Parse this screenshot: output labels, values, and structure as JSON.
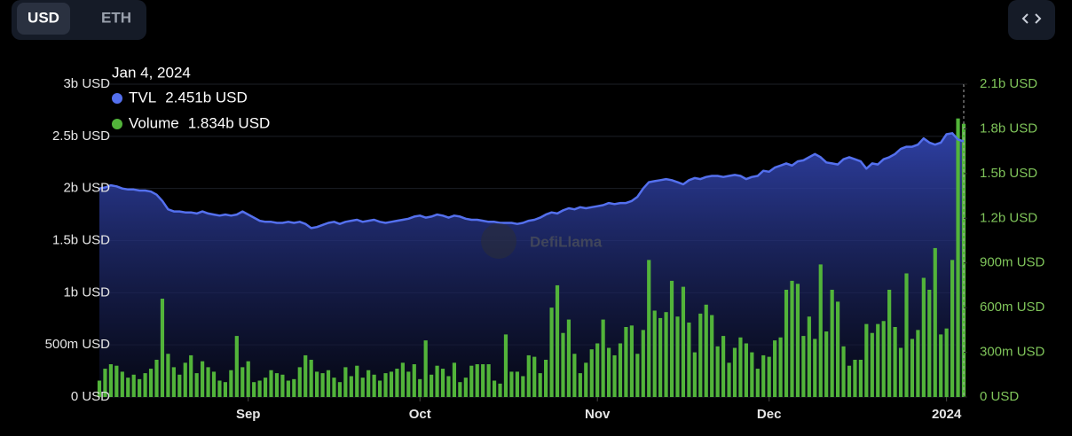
{
  "chart_data": {
    "type": "area-bar",
    "toggle": [
      "USD",
      "ETH"
    ],
    "watermark": "DefiLlama",
    "xlim": [
      0,
      151
    ],
    "xticks": [
      {
        "value": 26,
        "label": "Sep"
      },
      {
        "value": 56,
        "label": "Oct"
      },
      {
        "value": 87,
        "label": "Nov"
      },
      {
        "value": 117,
        "label": "Dec"
      },
      {
        "value": 148,
        "label": "2024"
      }
    ],
    "ylim": [
      0,
      3000000000.0
    ],
    "yticks": [
      {
        "value": 0,
        "label": "0 USD"
      },
      {
        "value": 500000000.0,
        "label": "500m USD"
      },
      {
        "value": 1000000000.0,
        "label": "1b USD"
      },
      {
        "value": 1500000000.0,
        "label": "1.5b USD"
      },
      {
        "value": 2000000000.0,
        "label": "2b USD"
      },
      {
        "value": 2500000000.0,
        "label": "2.5b USD"
      },
      {
        "value": 3000000000.0,
        "label": "3b USD"
      }
    ],
    "y2lim": [
      0,
      2100000000.0
    ],
    "y2ticks": [
      {
        "value": 0,
        "label": "0 USD"
      },
      {
        "value": 300000000.0,
        "label": "300m USD"
      },
      {
        "value": 600000000.0,
        "label": "600m USD"
      },
      {
        "value": 900000000.0,
        "label": "900m USD"
      },
      {
        "value": 1200000000.0,
        "label": "1.2b USD"
      },
      {
        "value": 1500000000.0,
        "label": "1.5b USD"
      },
      {
        "value": 1800000000.0,
        "label": "1.8b USD"
      },
      {
        "value": 2100000000.0,
        "label": "2.1b USD"
      }
    ],
    "grid": true,
    "tooltip": {
      "title": "Jan 4, 2024",
      "index": 151,
      "value_labels": [
        "2.451b USD",
        "1.834b USD"
      ]
    },
    "series": [
      {
        "name": "TVL",
        "kind": "area",
        "color": "#5470ee",
        "values": [
          2000000000.0,
          2010000000.0,
          2030000000.0,
          2020000000.0,
          2000000000.0,
          1990000000.0,
          1990000000.0,
          1980000000.0,
          1980000000.0,
          1970000000.0,
          1940000000.0,
          1880000000.0,
          1800000000.0,
          1780000000.0,
          1780000000.0,
          1770000000.0,
          1770000000.0,
          1760000000.0,
          1780000000.0,
          1760000000.0,
          1750000000.0,
          1740000000.0,
          1750000000.0,
          1740000000.0,
          1750000000.0,
          1780000000.0,
          1750000000.0,
          1720000000.0,
          1690000000.0,
          1680000000.0,
          1680000000.0,
          1670000000.0,
          1670000000.0,
          1680000000.0,
          1670000000.0,
          1680000000.0,
          1660000000.0,
          1620000000.0,
          1630000000.0,
          1650000000.0,
          1670000000.0,
          1680000000.0,
          1660000000.0,
          1680000000.0,
          1690000000.0,
          1700000000.0,
          1680000000.0,
          1690000000.0,
          1700000000.0,
          1680000000.0,
          1670000000.0,
          1680000000.0,
          1690000000.0,
          1700000000.0,
          1710000000.0,
          1730000000.0,
          1740000000.0,
          1720000000.0,
          1730000000.0,
          1750000000.0,
          1740000000.0,
          1720000000.0,
          1740000000.0,
          1730000000.0,
          1710000000.0,
          1700000000.0,
          1700000000.0,
          1690000000.0,
          1680000000.0,
          1680000000.0,
          1670000000.0,
          1670000000.0,
          1670000000.0,
          1660000000.0,
          1670000000.0,
          1690000000.0,
          1700000000.0,
          1720000000.0,
          1750000000.0,
          1770000000.0,
          1760000000.0,
          1790000000.0,
          1810000000.0,
          1800000000.0,
          1820000000.0,
          1810000000.0,
          1820000000.0,
          1830000000.0,
          1840000000.0,
          1860000000.0,
          1850000000.0,
          1860000000.0,
          1860000000.0,
          1880000000.0,
          1920000000.0,
          2000000000.0,
          2060000000.0,
          2070000000.0,
          2080000000.0,
          2090000000.0,
          2080000000.0,
          2060000000.0,
          2040000000.0,
          2080000000.0,
          2100000000.0,
          2090000000.0,
          2110000000.0,
          2120000000.0,
          2120000000.0,
          2110000000.0,
          2120000000.0,
          2130000000.0,
          2120000000.0,
          2090000000.0,
          2110000000.0,
          2120000000.0,
          2170000000.0,
          2160000000.0,
          2200000000.0,
          2220000000.0,
          2240000000.0,
          2220000000.0,
          2260000000.0,
          2270000000.0,
          2300000000.0,
          2330000000.0,
          2300000000.0,
          2250000000.0,
          2240000000.0,
          2230000000.0,
          2280000000.0,
          2300000000.0,
          2280000000.0,
          2260000000.0,
          2190000000.0,
          2240000000.0,
          2230000000.0,
          2280000000.0,
          2300000000.0,
          2330000000.0,
          2380000000.0,
          2400000000.0,
          2400000000.0,
          2420000000.0,
          2480000000.0,
          2440000000.0,
          2420000000.0,
          2440000000.0,
          2520000000.0,
          2530000000.0,
          2470000000.0,
          2451000000.0
        ]
      },
      {
        "name": "Volume",
        "kind": "bar",
        "axis": "y2",
        "color": "#52b43a",
        "values": [
          110000000.0,
          190000000.0,
          220000000.0,
          210000000.0,
          170000000.0,
          130000000.0,
          150000000.0,
          120000000.0,
          160000000.0,
          190000000.0,
          250000000.0,
          660000000.0,
          290000000.0,
          200000000.0,
          150000000.0,
          230000000.0,
          280000000.0,
          160000000.0,
          240000000.0,
          200000000.0,
          170000000.0,
          110000000.0,
          100000000.0,
          180000000.0,
          410000000.0,
          200000000.0,
          240000000.0,
          100000000.0,
          110000000.0,
          130000000.0,
          180000000.0,
          160000000.0,
          150000000.0,
          110000000.0,
          120000000.0,
          200000000.0,
          280000000.0,
          250000000.0,
          170000000.0,
          160000000.0,
          180000000.0,
          130000000.0,
          100000000.0,
          200000000.0,
          140000000.0,
          210000000.0,
          130000000.0,
          180000000.0,
          150000000.0,
          110000000.0,
          160000000.0,
          170000000.0,
          190000000.0,
          230000000.0,
          170000000.0,
          220000000.0,
          120000000.0,
          380000000.0,
          150000000.0,
          210000000.0,
          190000000.0,
          140000000.0,
          230000000.0,
          100000000.0,
          130000000.0,
          210000000.0,
          220000000.0,
          220000000.0,
          220000000.0,
          110000000.0,
          90000000.0,
          420000000.0,
          170000000.0,
          170000000.0,
          140000000.0,
          280000000.0,
          270000000.0,
          160000000.0,
          250000000.0,
          600000000.0,
          750000000.0,
          430000000.0,
          520000000.0,
          290000000.0,
          160000000.0,
          230000000.0,
          320000000.0,
          360000000.0,
          520000000.0,
          330000000.0,
          280000000.0,
          360000000.0,
          470000000.0,
          480000000.0,
          290000000.0,
          450000000.0,
          920000000.0,
          580000000.0,
          530000000.0,
          570000000.0,
          780000000.0,
          540000000.0,
          740000000.0,
          500000000.0,
          300000000.0,
          560000000.0,
          620000000.0,
          550000000.0,
          340000000.0,
          410000000.0,
          230000000.0,
          330000000.0,
          400000000.0,
          360000000.0,
          300000000.0,
          190000000.0,
          280000000.0,
          270000000.0,
          380000000.0,
          400000000.0,
          720000000.0,
          780000000.0,
          760000000.0,
          410000000.0,
          540000000.0,
          390000000.0,
          890000000.0,
          440000000.0,
          720000000.0,
          640000000.0,
          340000000.0,
          210000000.0,
          250000000.0,
          250000000.0,
          490000000.0,
          430000000.0,
          490000000.0,
          510000000.0,
          720000000.0,
          470000000.0,
          330000000.0,
          830000000.0,
          390000000.0,
          450000000.0,
          800000000.0,
          720000000.0,
          1000000000.0,
          420000000.0,
          460000000.0,
          920000000.0,
          1870000000.0,
          1834000000.0
        ]
      }
    ]
  }
}
